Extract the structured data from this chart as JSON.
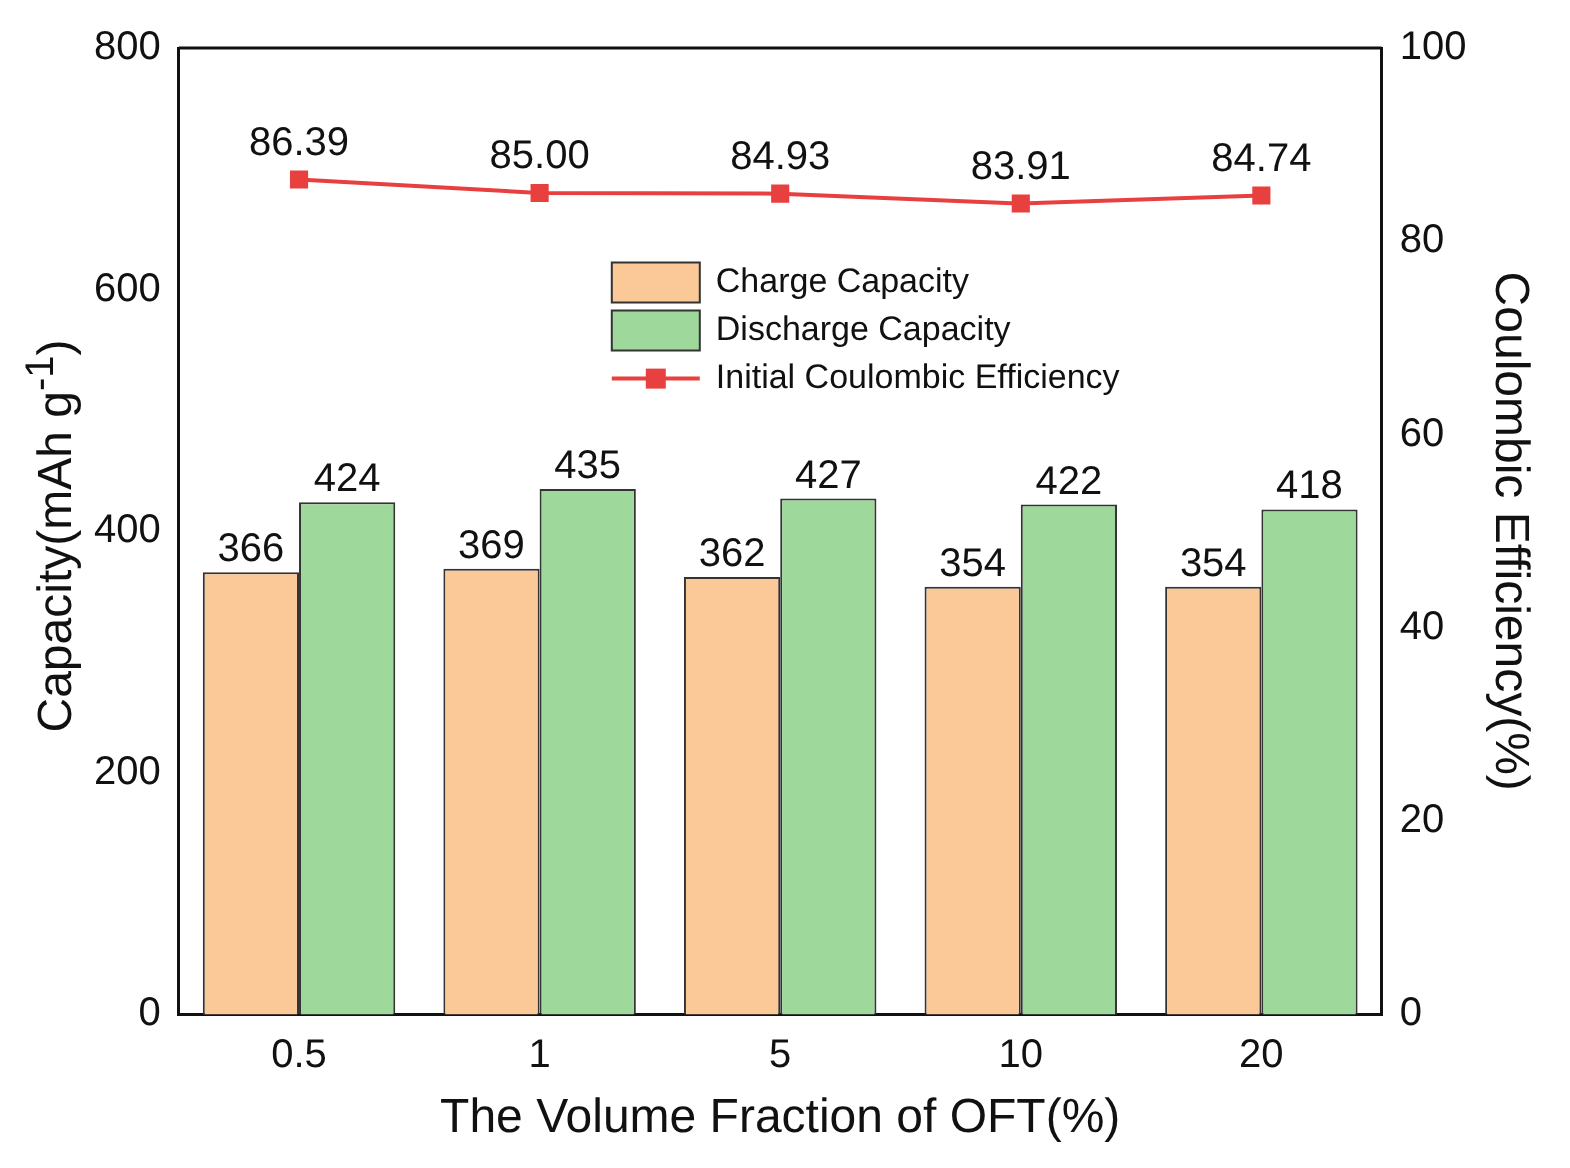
{
  "chart_data": {
    "type": "bar",
    "xlabel": "The Volume Fraction of OFT(%)",
    "ylabel": "Capacity(mAh g$^{-1}$)",
    "y2label": "Coulombic Efficiency(%)",
    "categories": [
      "0.5",
      "1",
      "5",
      "10",
      "20"
    ],
    "series": [
      {
        "name": "Charge Capacity",
        "color": "#fbc898",
        "values": [
          366,
          369,
          362,
          354,
          354
        ],
        "value_labels": [
          "366",
          "369",
          "362",
          "354",
          "354"
        ]
      },
      {
        "name": "Discharge Capacity",
        "color": "#9fd89b",
        "values": [
          424,
          435,
          427,
          422,
          418
        ],
        "value_labels": [
          "424",
          "435",
          "427",
          "422",
          "418"
        ]
      },
      {
        "name": "Initial Coulombic Efficiency",
        "type": "line",
        "axis": "y2",
        "color": "#e8403f",
        "marker": "square",
        "values": [
          86.39,
          85.0,
          84.93,
          83.91,
          84.74
        ],
        "value_labels": [
          "86.39",
          "85.00",
          "84.93",
          "83.91",
          "84.74"
        ]
      }
    ],
    "ylim": [
      0,
      800
    ],
    "yticks": [
      0,
      200,
      400,
      600,
      800
    ],
    "y2lim": [
      0,
      100
    ],
    "y2ticks": [
      0,
      20,
      40,
      60,
      80,
      100
    ],
    "legend": "top",
    "grid": false
  }
}
